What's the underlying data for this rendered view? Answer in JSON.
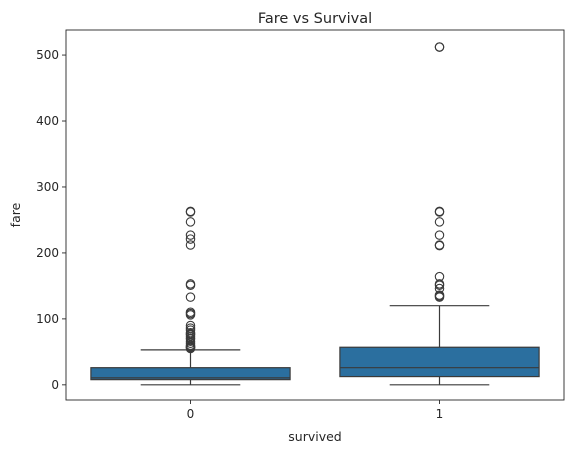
{
  "chart_data": {
    "type": "box",
    "title": "Fare vs Survival",
    "xlabel": "survived",
    "ylabel": "fare",
    "ylim": [
      -23,
      538
    ],
    "yticks": [
      0,
      100,
      200,
      300,
      400,
      500
    ],
    "categories": [
      "0",
      "1"
    ],
    "box_color": "#2b6f9f",
    "line_color": "#3a3a3a",
    "grid": false,
    "series": [
      {
        "category": "0",
        "whisker_low": 0,
        "q1": 7.85,
        "median": 10.5,
        "q3": 26,
        "whisker_high": 53,
        "outliers": [
          55,
          56.5,
          57,
          58,
          60,
          63,
          66,
          69.5,
          71,
          73.5,
          76,
          77,
          79,
          83,
          86,
          90,
          106,
          108,
          110,
          133,
          151,
          153,
          212,
          221,
          227,
          247,
          262,
          263
        ]
      },
      {
        "category": "1",
        "whisker_low": 0,
        "q1": 12.5,
        "median": 26,
        "q3": 57,
        "whisker_high": 120,
        "outliers": [
          133,
          134.5,
          136,
          146,
          151,
          153,
          164,
          211,
          212,
          227,
          247,
          262,
          263,
          512,
          512.3
        ]
      }
    ]
  }
}
